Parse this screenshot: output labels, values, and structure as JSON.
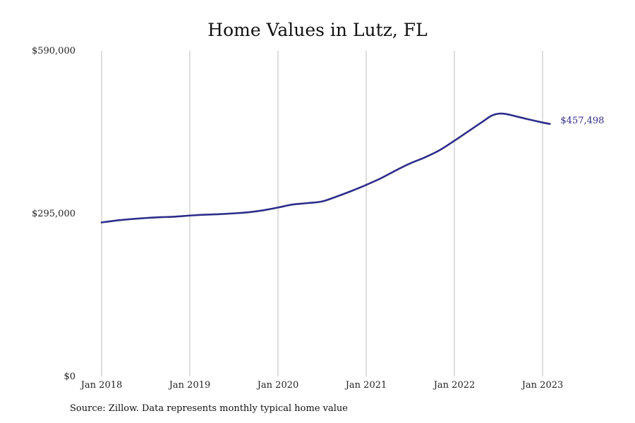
{
  "title": "Home Values in Lutz, FL",
  "source_note": "Source: Zillow. Data represents monthly typical home value",
  "colors": {
    "line": "#2e2d8a",
    "grid": "#bdbdbd",
    "text": "#222222"
  },
  "chart_data": {
    "type": "line",
    "title": "Home Values in Lutz, FL",
    "xlabel": "",
    "ylabel": "",
    "ylim": [
      0,
      590000
    ],
    "y_ticks": [
      0,
      295000,
      590000
    ],
    "y_tick_labels": [
      "$0",
      "$295,000",
      "$590,000"
    ],
    "x_ticks": [
      0,
      12,
      24,
      36,
      48,
      60
    ],
    "x_tick_labels": [
      "Jan 2018",
      "Jan 2019",
      "Jan 2020",
      "Jan 2021",
      "Jan 2022",
      "Jan 2023"
    ],
    "x_unit": "months since Jan 2018",
    "grid": "vertical",
    "end_label": "$457,498",
    "series": [
      {
        "name": "",
        "x": [
          0,
          2,
          4,
          6,
          8,
          10,
          12,
          14,
          16,
          18,
          20,
          22,
          24,
          26,
          28,
          30,
          32,
          34,
          36,
          38,
          40,
          42,
          44,
          46,
          48,
          50,
          52,
          53,
          54,
          55,
          56,
          58,
          60,
          61
        ],
        "values": [
          279000,
          282500,
          285000,
          287000,
          288500,
          289500,
          291500,
          293000,
          294000,
          295500,
          297500,
          301000,
          306000,
          311500,
          314000,
          317000,
          326000,
          336000,
          347000,
          359000,
          373000,
          386000,
          397000,
          410000,
          427000,
          445000,
          463000,
          472000,
          476000,
          475500,
          472500,
          466000,
          460000,
          457498
        ]
      }
    ]
  }
}
